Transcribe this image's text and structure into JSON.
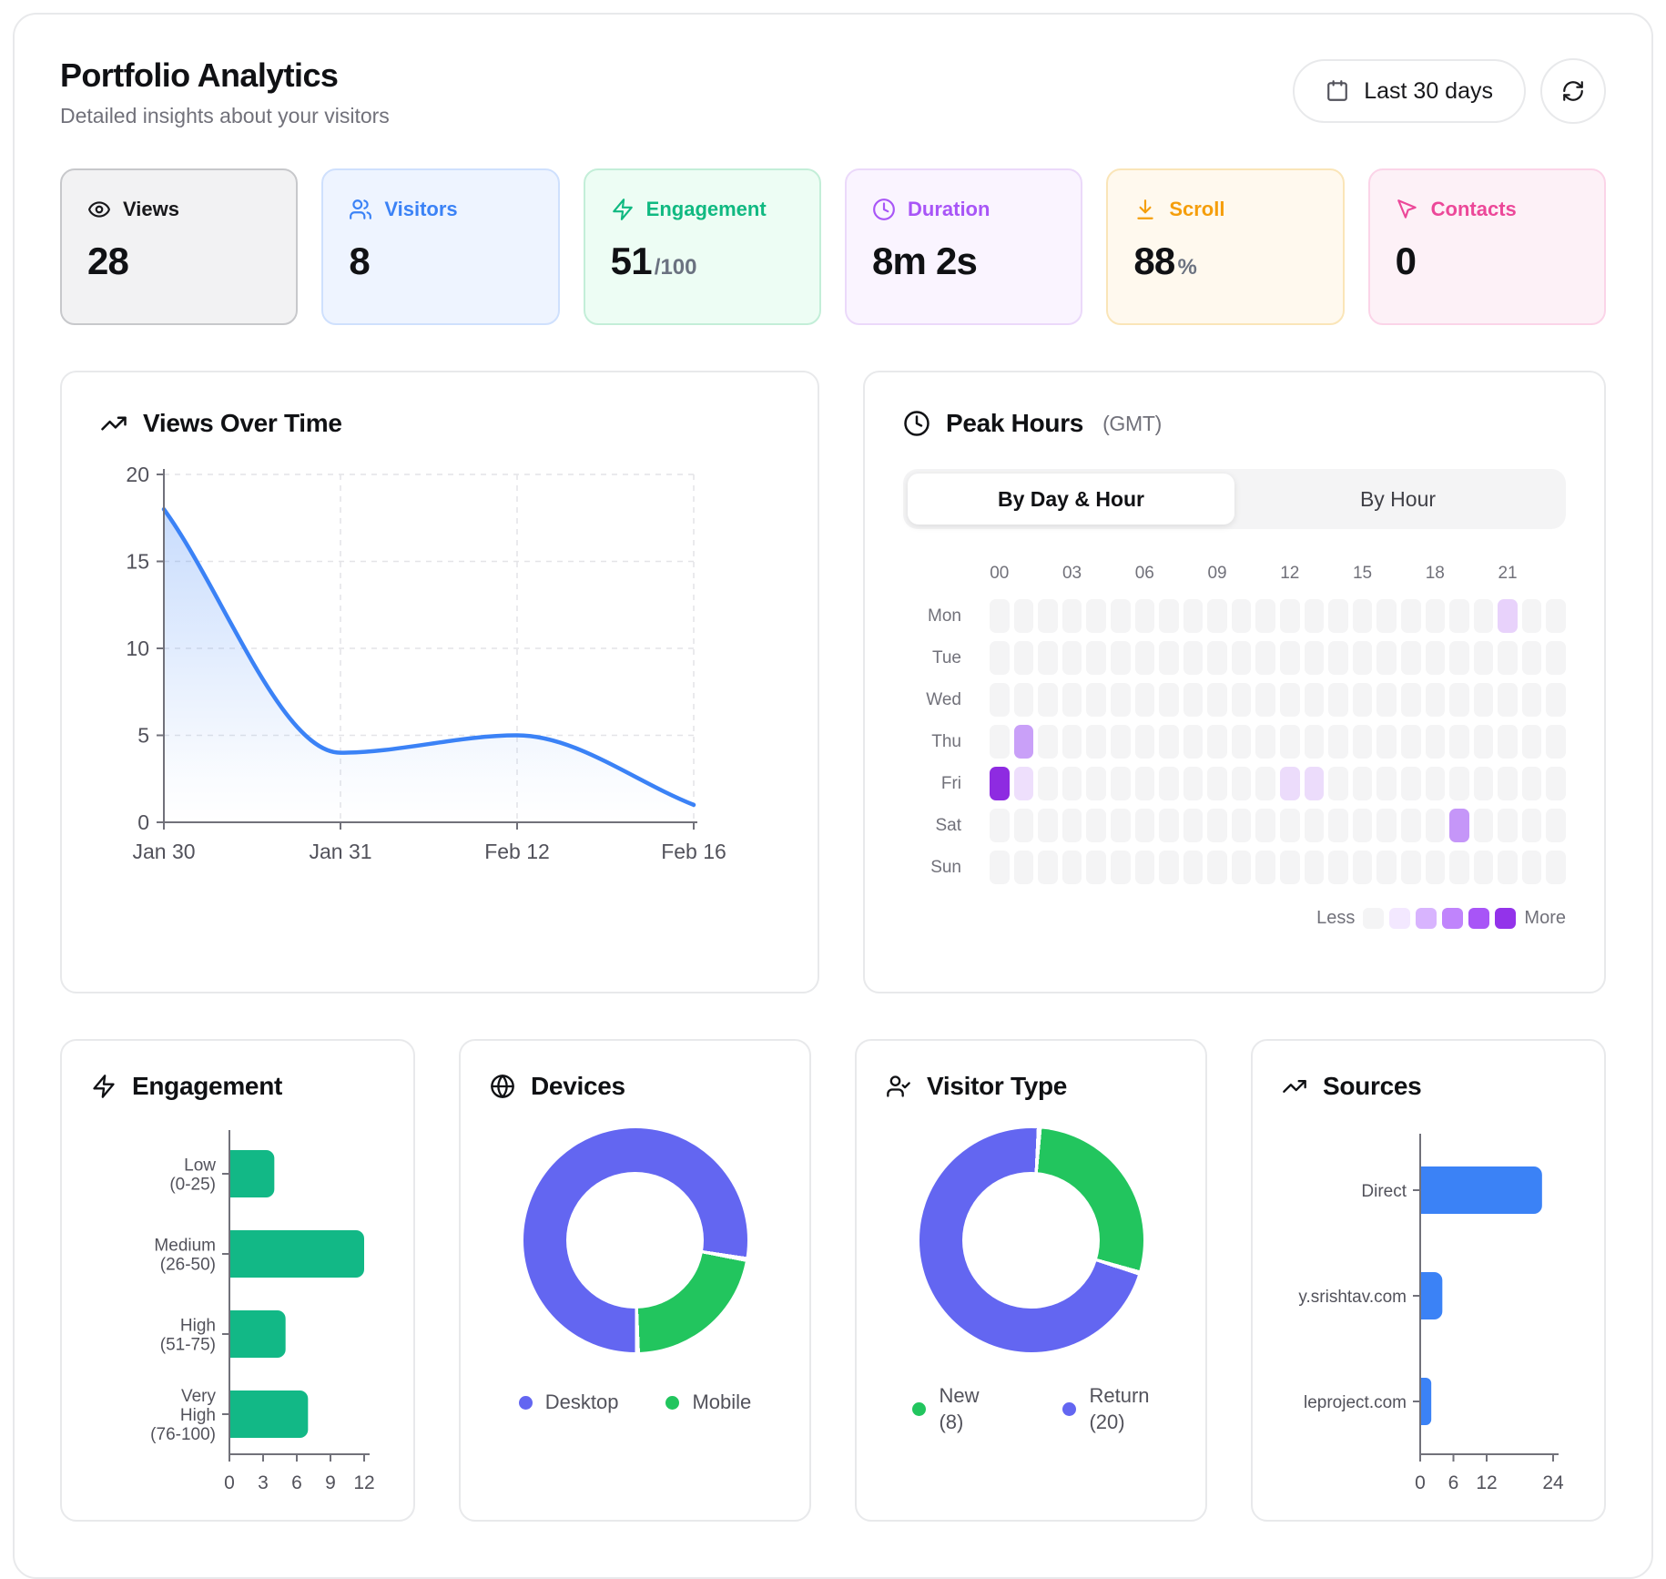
{
  "header": {
    "title": "Portfolio Analytics",
    "subtitle": "Detailed insights about your visitors",
    "date_range_button": "Last 30 days"
  },
  "stats": [
    {
      "label": "Views",
      "value": "28",
      "suffix": "",
      "icon": "eye",
      "bg": "#f2f2f3",
      "border": "#c7c8cb",
      "accent": "#18181b"
    },
    {
      "label": "Visitors",
      "value": "8",
      "suffix": "",
      "icon": "users",
      "bg": "#eef4ff",
      "border": "#cfe0fd",
      "accent": "#3b82f6"
    },
    {
      "label": "Engagement",
      "value": "51",
      "suffix": "/100",
      "icon": "zap",
      "bg": "#edfdf4",
      "border": "#c3eed8",
      "accent": "#10b981"
    },
    {
      "label": "Duration",
      "value": "8m 2s",
      "suffix": "",
      "icon": "clock",
      "bg": "#faf4ff",
      "border": "#ebd9fa",
      "accent": "#a855f7"
    },
    {
      "label": "Scroll",
      "value": "88",
      "suffix": "%",
      "icon": "arrow-down-to-line",
      "bg": "#fff9ee",
      "border": "#fae5b8",
      "accent": "#f59e0b"
    },
    {
      "label": "Contacts",
      "value": "0",
      "suffix": "",
      "icon": "mouse-pointer",
      "bg": "#fdf1f7",
      "border": "#fbd4e8",
      "accent": "#ec4899"
    }
  ],
  "chart_data": [
    {
      "id": "views_over_time",
      "type": "area",
      "title": "Views Over Time",
      "icon": "trending-up",
      "categories": [
        "Jan 30",
        "Jan 31",
        "Feb 12",
        "Feb 16"
      ],
      "values": [
        18,
        4,
        5,
        1
      ],
      "ylim": [
        0,
        20
      ],
      "yticks": [
        0,
        5,
        10,
        15,
        20
      ],
      "grid": "dashed",
      "line_color": "#3b82f6"
    },
    {
      "id": "peak_hours",
      "type": "heatmap",
      "title": "Peak Hours",
      "icon": "clock",
      "unit_note": "(GMT)",
      "tabs": [
        "By Day & Hour",
        "By Hour"
      ],
      "active_tab": "By Day & Hour",
      "hour_ticks": [
        "00",
        "03",
        "06",
        "09",
        "12",
        "15",
        "18",
        "21"
      ],
      "days": [
        "Mon",
        "Tue",
        "Wed",
        "Thu",
        "Fri",
        "Sat",
        "Sun"
      ],
      "hours_per_day": 24,
      "base_cell_color": "#f4f4f5",
      "highlights": [
        {
          "day": "Mon",
          "hour": 21,
          "color": "#e8d2fb"
        },
        {
          "day": "Thu",
          "hour": 1,
          "color": "#c9a0f8"
        },
        {
          "day": "Fri",
          "hour": 0,
          "color": "#8e2be1"
        },
        {
          "day": "Fri",
          "hour": 1,
          "color": "#eedffc"
        },
        {
          "day": "Fri",
          "hour": 12,
          "color": "#ecdcfb"
        },
        {
          "day": "Fri",
          "hour": 13,
          "color": "#ecdcfb"
        },
        {
          "day": "Sat",
          "hour": 19,
          "color": "#c596f8"
        }
      ],
      "legend": {
        "less": "Less",
        "more": "More",
        "scale": [
          "#f4f4f5",
          "#f3e8ff",
          "#d8b4fe",
          "#c084fc",
          "#a855f7",
          "#9333ea"
        ]
      }
    },
    {
      "id": "engagement",
      "type": "bar-horizontal",
      "title": "Engagement",
      "icon": "zap",
      "categories": [
        "Low (0-25)",
        "Medium (26-50)",
        "High (51-75)",
        "Very High (76-100)"
      ],
      "values": [
        4,
        12,
        5,
        7
      ],
      "xticks": [
        0,
        3,
        6,
        9,
        12
      ],
      "xlim": [
        0,
        12
      ],
      "bar_color": "#12b886"
    },
    {
      "id": "devices",
      "type": "donut",
      "title": "Devices",
      "icon": "globe",
      "series": [
        {
          "name": "Desktop",
          "share_pct": 78,
          "color": "#6366f1"
        },
        {
          "name": "Mobile",
          "share_pct": 22,
          "color": "#22c55e"
        }
      ],
      "legend_style": "inline",
      "start_angle_deg": 179
    },
    {
      "id": "visitor_type",
      "type": "donut",
      "title": "Visitor Type",
      "icon": "user-check",
      "series": [
        {
          "name": "New",
          "value": 8,
          "count_label": "(8)",
          "color": "#22c55e"
        },
        {
          "name": "Return",
          "value": 20,
          "count_label": "(20)",
          "color": "#6366f1"
        }
      ],
      "legend_style": "two-line",
      "start_angle_deg": 4
    },
    {
      "id": "sources",
      "type": "bar-horizontal",
      "title": "Sources",
      "icon": "trending-up",
      "categories": [
        "Direct",
        "y.srishtav.com",
        "leproject.com"
      ],
      "values": [
        22,
        4,
        2
      ],
      "xticks": [
        0,
        6,
        12,
        24
      ],
      "xlim": [
        0,
        24
      ],
      "bar_color": "#3b82f6"
    }
  ]
}
